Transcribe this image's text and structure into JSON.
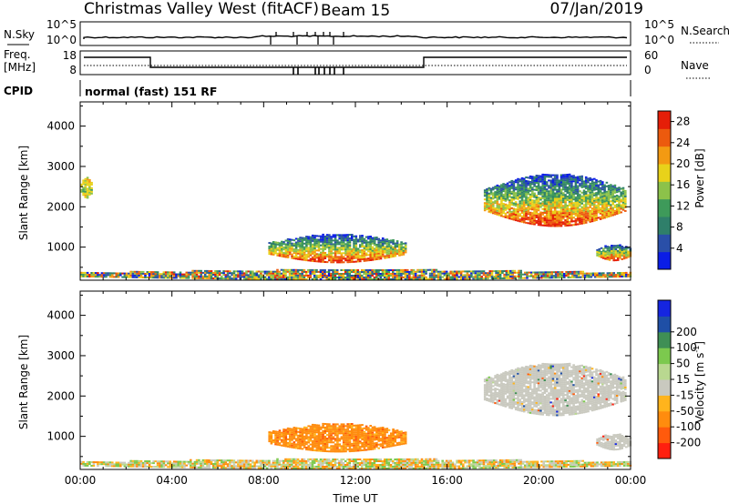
{
  "header": {
    "site": "Christmas Valley West (fitACF)",
    "beam": "Beam 15",
    "date": "07/Jan/2019"
  },
  "params": {
    "nsky_label": "N.Sky",
    "nsky_ticks": [
      "10^5",
      "10^0"
    ],
    "nsearch_label": "N.Search",
    "nsearch_ticks": [
      "10^5",
      "10^0"
    ],
    "freq_label_line1": "Freq.",
    "freq_label_line2": "[MHz]",
    "freq_ticks": [
      "18",
      "8"
    ],
    "nave_label": "Nave",
    "nave_ticks": [
      "60",
      "0"
    ],
    "cpid_label": "CPID",
    "cpid_value": "normal (fast) 151 RF"
  },
  "colors": {
    "power": [
      "#0a1de6",
      "#2a4fa8",
      "#2f7f6a",
      "#3e9a5a",
      "#8cc24a",
      "#e8d21a",
      "#f39a12",
      "#ec5a0e",
      "#e51e08"
    ],
    "velocity": [
      "#ff1f0f",
      "#ff5a0c",
      "#ff8c0e",
      "#ffb41c",
      "#c9c9bf",
      "#b9d890",
      "#7cc94e",
      "#3f8f55",
      "#1f4fa6",
      "#1525e0"
    ]
  },
  "chart_data": [
    {
      "type": "heatmap",
      "name": "Power",
      "xlabel": "Time UT",
      "ylabel": "Slant Range [km]",
      "x_ticks": [
        "00:00",
        "04:00",
        "08:00",
        "12:00",
        "16:00",
        "20:00",
        "00:00"
      ],
      "x_range_hours": [
        0,
        24
      ],
      "y_ticks": [
        1000,
        2000,
        3000,
        4000
      ],
      "ylim": [
        180,
        4600
      ],
      "colorbar": {
        "label": "Power [dB]",
        "ticks": [
          4,
          8,
          12,
          16,
          20,
          24,
          28
        ],
        "range": [
          0,
          30
        ]
      },
      "regions": [
        {
          "t_start": 8.2,
          "t_end": 14.2,
          "r_min": 600,
          "r_max": 1300,
          "level": "strong"
        },
        {
          "t_start": 17.6,
          "t_end": 23.8,
          "r_min": 1500,
          "r_max": 2800,
          "level": "strong"
        },
        {
          "t_start": 22.5,
          "t_end": 24,
          "r_min": 650,
          "r_max": 1050,
          "level": "strong"
        },
        {
          "t_start": 0,
          "t_end": 24,
          "r_min": 180,
          "r_max": 420,
          "level": "weak"
        },
        {
          "t_start": 0,
          "t_end": 0.5,
          "r_min": 2200,
          "r_max": 2700,
          "level": "moderate"
        }
      ]
    },
    {
      "type": "heatmap",
      "name": "Velocity",
      "xlabel": "Time UT",
      "ylabel": "Slant Range [km]",
      "x_ticks": [
        "00:00",
        "04:00",
        "08:00",
        "12:00",
        "16:00",
        "20:00",
        "00:00"
      ],
      "x_range_hours": [
        0,
        24
      ],
      "y_ticks": [
        1000,
        2000,
        3000,
        4000
      ],
      "ylim": [
        180,
        4600
      ],
      "colorbar": {
        "label": "Velocity [m s^-1]",
        "ticks": [
          -200,
          -100,
          -50,
          -15,
          15,
          50,
          100,
          200
        ]
      },
      "regions": [
        {
          "t_start": 8.2,
          "t_end": 14.2,
          "r_min": 600,
          "r_max": 1300,
          "level": "-50"
        },
        {
          "t_start": 17.6,
          "t_end": 23.8,
          "r_min": 1500,
          "r_max": 2800,
          "level": "ground"
        },
        {
          "t_start": 22.5,
          "t_end": 24,
          "r_min": 650,
          "r_max": 1050,
          "level": "ground"
        },
        {
          "t_start": 0,
          "t_end": 24,
          "r_min": 180,
          "r_max": 420,
          "level": "mixed"
        }
      ]
    }
  ]
}
